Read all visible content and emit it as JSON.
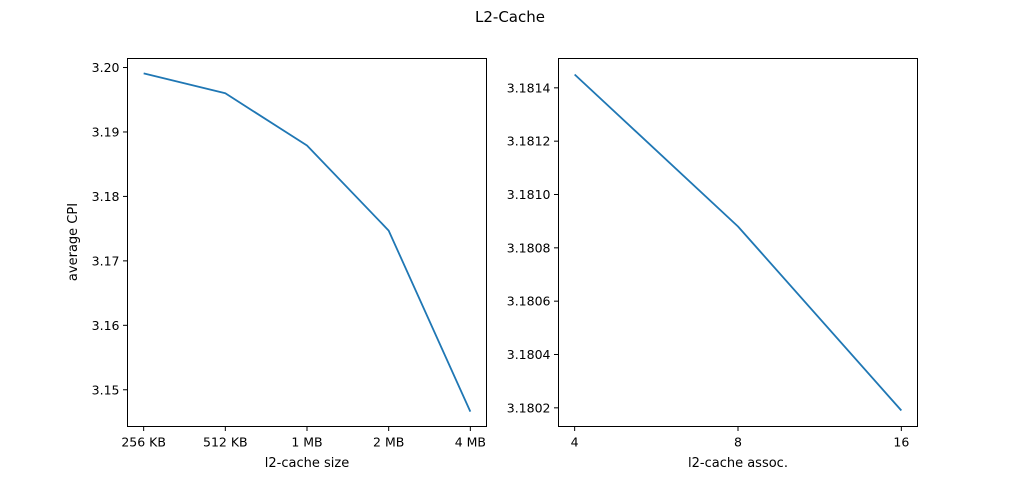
{
  "figure": {
    "suptitle": "L2-Cache"
  },
  "chart_data": [
    {
      "type": "line",
      "title": "",
      "xlabel": "l2-cache size",
      "ylabel": "average CPI",
      "x_scale": "categorical",
      "categories": [
        "256 KB",
        "512 KB",
        "1 MB",
        "2 MB",
        "4 MB"
      ],
      "series": [
        {
          "color": "#1f77b4",
          "values": [
            3.1991,
            3.196,
            3.1879,
            3.1747,
            3.1466
          ]
        }
      ],
      "ylim": [
        3.1443,
        3.2014
      ],
      "yticks": [
        3.15,
        3.16,
        3.17,
        3.18,
        3.19,
        3.2
      ],
      "ytick_labels": [
        "3.15",
        "3.16",
        "3.17",
        "3.18",
        "3.19",
        "3.20"
      ],
      "grid": false
    },
    {
      "type": "line",
      "title": "",
      "xlabel": "l2-cache assoc.",
      "ylabel": "",
      "x_scale": "log2",
      "x": [
        4,
        8,
        16
      ],
      "xtick_labels": [
        "4",
        "8",
        "16"
      ],
      "series": [
        {
          "color": "#1f77b4",
          "values": [
            3.18145,
            3.18088,
            3.18019
          ]
        }
      ],
      "ylim": [
        3.18013,
        3.18151
      ],
      "yticks": [
        3.1802,
        3.1804,
        3.1806,
        3.1808,
        3.181,
        3.1812,
        3.1814
      ],
      "ytick_labels": [
        "3.1802",
        "3.1804",
        "3.1806",
        "3.1808",
        "3.1810",
        "3.1812",
        "3.1814"
      ],
      "grid": false
    }
  ]
}
